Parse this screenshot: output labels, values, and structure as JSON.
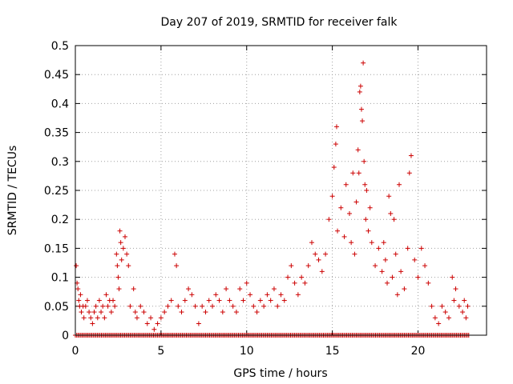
{
  "chart_data": {
    "type": "scatter",
    "title": "Day 207 of 2019, SRMTID for receiver falk",
    "xlabel": "GPS time / hours",
    "ylabel": "SRMTID / TECUs",
    "xlim": [
      0,
      24
    ],
    "ylim": [
      0,
      0.5
    ],
    "xticks": [
      0,
      5,
      10,
      15,
      20
    ],
    "yticks": [
      0,
      0.05,
      0.1,
      0.15,
      0.2,
      0.25,
      0.3,
      0.35,
      0.4,
      0.45,
      0.5
    ],
    "xtick_labels": [
      "0",
      "5",
      "10",
      "15",
      "20"
    ],
    "ytick_labels": [
      "0",
      "0.05",
      "0.1",
      "0.15",
      "0.2",
      "0.25",
      "0.3",
      "0.35",
      "0.4",
      "0.45",
      "0.5"
    ],
    "grid": true,
    "marker": "plus",
    "series": [
      {
        "name": "SRMTID",
        "color": "#cc0000",
        "points": [
          [
            0.05,
            0.12
          ],
          [
            0.1,
            0.09
          ],
          [
            0.15,
            0.08
          ],
          [
            0.2,
            0.06
          ],
          [
            0.25,
            0.05
          ],
          [
            0.3,
            0.07
          ],
          [
            0.35,
            0.04
          ],
          [
            0.45,
            0.05
          ],
          [
            0.5,
            0.03
          ],
          [
            0.6,
            0.05
          ],
          [
            0.7,
            0.06
          ],
          [
            0.8,
            0.04
          ],
          [
            0.9,
            0.03
          ],
          [
            1.0,
            0.02
          ],
          [
            1.1,
            0.04
          ],
          [
            1.2,
            0.05
          ],
          [
            1.3,
            0.03
          ],
          [
            1.4,
            0.06
          ],
          [
            1.5,
            0.04
          ],
          [
            1.6,
            0.05
          ],
          [
            1.7,
            0.03
          ],
          [
            1.8,
            0.07
          ],
          [
            1.9,
            0.05
          ],
          [
            2.0,
            0.06
          ],
          [
            2.1,
            0.04
          ],
          [
            2.2,
            0.06
          ],
          [
            2.3,
            0.05
          ],
          [
            2.4,
            0.14
          ],
          [
            2.45,
            0.12
          ],
          [
            2.5,
            0.1
          ],
          [
            2.55,
            0.08
          ],
          [
            2.6,
            0.18
          ],
          [
            2.65,
            0.16
          ],
          [
            2.7,
            0.13
          ],
          [
            2.8,
            0.15
          ],
          [
            2.9,
            0.17
          ],
          [
            3.0,
            0.14
          ],
          [
            3.1,
            0.12
          ],
          [
            3.2,
            0.05
          ],
          [
            3.4,
            0.08
          ],
          [
            3.5,
            0.04
          ],
          [
            3.6,
            0.03
          ],
          [
            3.8,
            0.05
          ],
          [
            4.0,
            0.04
          ],
          [
            4.2,
            0.02
          ],
          [
            4.4,
            0.03
          ],
          [
            4.6,
            0.01
          ],
          [
            4.8,
            0.02
          ],
          [
            5.0,
            0.03
          ],
          [
            5.2,
            0.04
          ],
          [
            5.4,
            0.05
          ],
          [
            5.6,
            0.06
          ],
          [
            5.8,
            0.14
          ],
          [
            5.9,
            0.12
          ],
          [
            6.0,
            0.05
          ],
          [
            6.2,
            0.04
          ],
          [
            6.4,
            0.06
          ],
          [
            6.6,
            0.08
          ],
          [
            6.8,
            0.07
          ],
          [
            7.0,
            0.05
          ],
          [
            7.2,
            0.02
          ],
          [
            7.4,
            0.05
          ],
          [
            7.6,
            0.04
          ],
          [
            7.8,
            0.06
          ],
          [
            8.0,
            0.05
          ],
          [
            8.2,
            0.07
          ],
          [
            8.4,
            0.06
          ],
          [
            8.6,
            0.04
          ],
          [
            8.8,
            0.08
          ],
          [
            9.0,
            0.06
          ],
          [
            9.2,
            0.05
          ],
          [
            9.4,
            0.04
          ],
          [
            9.6,
            0.08
          ],
          [
            9.8,
            0.06
          ],
          [
            10.0,
            0.09
          ],
          [
            10.2,
            0.07
          ],
          [
            10.4,
            0.05
          ],
          [
            10.6,
            0.04
          ],
          [
            10.8,
            0.06
          ],
          [
            11.0,
            0.05
          ],
          [
            11.2,
            0.07
          ],
          [
            11.4,
            0.06
          ],
          [
            11.6,
            0.08
          ],
          [
            11.8,
            0.05
          ],
          [
            12.0,
            0.07
          ],
          [
            12.2,
            0.06
          ],
          [
            12.4,
            0.1
          ],
          [
            12.6,
            0.12
          ],
          [
            12.8,
            0.09
          ],
          [
            13.0,
            0.07
          ],
          [
            13.2,
            0.1
          ],
          [
            13.4,
            0.09
          ],
          [
            13.6,
            0.12
          ],
          [
            13.8,
            0.16
          ],
          [
            14.0,
            0.14
          ],
          [
            14.2,
            0.13
          ],
          [
            14.4,
            0.11
          ],
          [
            14.6,
            0.14
          ],
          [
            14.8,
            0.2
          ],
          [
            15.0,
            0.24
          ],
          [
            15.1,
            0.29
          ],
          [
            15.2,
            0.33
          ],
          [
            15.25,
            0.36
          ],
          [
            15.3,
            0.18
          ],
          [
            15.5,
            0.22
          ],
          [
            15.7,
            0.17
          ],
          [
            15.8,
            0.26
          ],
          [
            16.0,
            0.21
          ],
          [
            16.1,
            0.16
          ],
          [
            16.2,
            0.28
          ],
          [
            16.3,
            0.14
          ],
          [
            16.4,
            0.23
          ],
          [
            16.5,
            0.32
          ],
          [
            16.55,
            0.28
          ],
          [
            16.6,
            0.42
          ],
          [
            16.65,
            0.43
          ],
          [
            16.7,
            0.39
          ],
          [
            16.75,
            0.37
          ],
          [
            16.8,
            0.47
          ],
          [
            16.85,
            0.3
          ],
          [
            16.9,
            0.26
          ],
          [
            16.95,
            0.2
          ],
          [
            17.0,
            0.25
          ],
          [
            17.1,
            0.18
          ],
          [
            17.2,
            0.22
          ],
          [
            17.3,
            0.16
          ],
          [
            17.5,
            0.12
          ],
          [
            17.7,
            0.15
          ],
          [
            17.9,
            0.11
          ],
          [
            18.0,
            0.16
          ],
          [
            18.1,
            0.13
          ],
          [
            18.2,
            0.09
          ],
          [
            18.3,
            0.24
          ],
          [
            18.4,
            0.21
          ],
          [
            18.5,
            0.1
          ],
          [
            18.6,
            0.2
          ],
          [
            18.7,
            0.14
          ],
          [
            18.8,
            0.07
          ],
          [
            18.9,
            0.26
          ],
          [
            19.0,
            0.11
          ],
          [
            19.2,
            0.08
          ],
          [
            19.4,
            0.15
          ],
          [
            19.5,
            0.28
          ],
          [
            19.6,
            0.31
          ],
          [
            19.8,
            0.13
          ],
          [
            20.0,
            0.1
          ],
          [
            20.2,
            0.15
          ],
          [
            20.4,
            0.12
          ],
          [
            20.6,
            0.09
          ],
          [
            20.8,
            0.05
          ],
          [
            21.0,
            0.03
          ],
          [
            21.2,
            0.02
          ],
          [
            21.4,
            0.05
          ],
          [
            21.6,
            0.04
          ],
          [
            21.8,
            0.03
          ],
          [
            22.0,
            0.1
          ],
          [
            22.1,
            0.06
          ],
          [
            22.2,
            0.08
          ],
          [
            22.4,
            0.05
          ],
          [
            22.6,
            0.04
          ],
          [
            22.7,
            0.06
          ],
          [
            22.8,
            0.03
          ],
          [
            22.9,
            0.05
          ]
        ]
      },
      {
        "name": "SRMTID baseline",
        "color": "#cc0000",
        "x_range": [
          0,
          23
        ],
        "y": 0
      }
    ]
  }
}
